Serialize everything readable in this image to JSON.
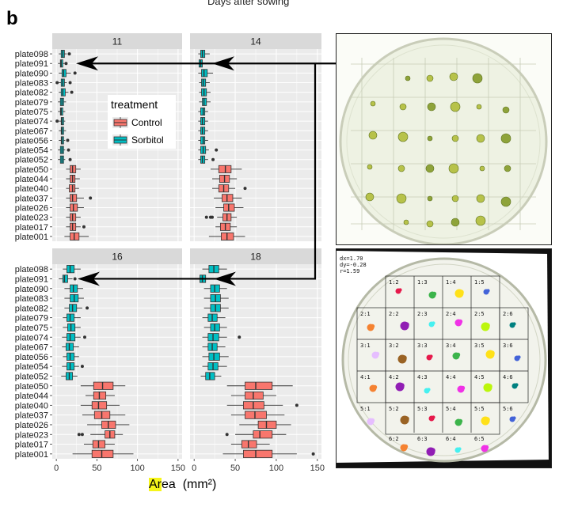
{
  "figure": {
    "top_caption": "Days after sowing",
    "panel_letter": "b",
    "x_axis_title_highlight": "Ar",
    "x_axis_title_rest": "ea",
    "x_axis_unit": "(mm²)"
  },
  "legend": {
    "title": "treatment",
    "items": [
      {
        "label": "Control",
        "color": "#f8766d"
      },
      {
        "label": "Sorbitol",
        "color": "#00bfc4"
      }
    ]
  },
  "colors": {
    "control": "#f8766d",
    "sorbitol": "#00bfc4",
    "strip_bg": "#d9d9d9",
    "panel_bg": "#ebebeb",
    "arrow": "#000000"
  },
  "chart_data": {
    "type": "box",
    "facets": [
      "11",
      "14",
      "16",
      "18"
    ],
    "categories": [
      "plate098",
      "plate091",
      "plate090",
      "plate083",
      "plate082",
      "plate079",
      "plate075",
      "plate074",
      "plate067",
      "plate056",
      "plate054",
      "plate052",
      "plate050",
      "plate044",
      "plate040",
      "plate037",
      "plate026",
      "plate023",
      "plate017",
      "plate001"
    ],
    "treatment_of_category": [
      "Sorbitol",
      "Sorbitol",
      "Sorbitol",
      "Sorbitol",
      "Sorbitol",
      "Sorbitol",
      "Sorbitol",
      "Sorbitol",
      "Sorbitol",
      "Sorbitol",
      "Sorbitol",
      "Sorbitol",
      "Control",
      "Control",
      "Control",
      "Control",
      "Control",
      "Control",
      "Control",
      "Control"
    ],
    "x_ticks": [
      0,
      50,
      100,
      150
    ],
    "xlim": [
      -5,
      155
    ],
    "xlabel": "Area (mm²)",
    "boxes": {
      "11": [
        {
          "min": 3,
          "q1": 6,
          "median": 8,
          "q3": 10,
          "max": 13,
          "outliers": [
            16
          ]
        },
        {
          "min": 2,
          "q1": 5,
          "median": 6,
          "q3": 8,
          "max": 10,
          "outliers": [
            12
          ]
        },
        {
          "min": 3,
          "q1": 7,
          "median": 9,
          "q3": 12,
          "max": 18,
          "outliers": [
            23
          ]
        },
        {
          "min": 2,
          "q1": 6,
          "median": 8,
          "q3": 10,
          "max": 13,
          "outliers": [
            1,
            17
          ]
        },
        {
          "min": 3,
          "q1": 6,
          "median": 8,
          "q3": 11,
          "max": 15,
          "outliers": [
            19
          ]
        },
        {
          "min": 2,
          "q1": 5,
          "median": 7,
          "q3": 9,
          "max": 12,
          "outliers": []
        },
        {
          "min": 2,
          "q1": 5,
          "median": 6,
          "q3": 8,
          "max": 11,
          "outliers": []
        },
        {
          "min": 3,
          "q1": 6,
          "median": 7,
          "q3": 9,
          "max": 11,
          "outliers": [
            1
          ]
        },
        {
          "min": 3,
          "q1": 6,
          "median": 7,
          "q3": 9,
          "max": 12,
          "outliers": []
        },
        {
          "min": 3,
          "q1": 6,
          "median": 7,
          "q3": 9,
          "max": 11,
          "outliers": [
            14
          ]
        },
        {
          "min": 2,
          "q1": 5,
          "median": 7,
          "q3": 9,
          "max": 11,
          "outliers": [
            15
          ]
        },
        {
          "min": 2,
          "q1": 5,
          "median": 7,
          "q3": 9,
          "max": 11,
          "outliers": [
            17
          ]
        },
        {
          "min": 12,
          "q1": 17,
          "median": 20,
          "q3": 24,
          "max": 30,
          "outliers": []
        },
        {
          "min": 12,
          "q1": 17,
          "median": 20,
          "q3": 23,
          "max": 29,
          "outliers": []
        },
        {
          "min": 12,
          "q1": 16,
          "median": 20,
          "q3": 23,
          "max": 28,
          "outliers": []
        },
        {
          "min": 12,
          "q1": 17,
          "median": 20,
          "q3": 25,
          "max": 34,
          "outliers": [
            42
          ]
        },
        {
          "min": 12,
          "q1": 17,
          "median": 21,
          "q3": 26,
          "max": 34,
          "outliers": []
        },
        {
          "min": 12,
          "q1": 17,
          "median": 20,
          "q3": 24,
          "max": 30,
          "outliers": []
        },
        {
          "min": 12,
          "q1": 17,
          "median": 20,
          "q3": 24,
          "max": 30,
          "outliers": [
            34
          ]
        },
        {
          "min": 10,
          "q1": 17,
          "median": 22,
          "q3": 28,
          "max": 40,
          "outliers": []
        }
      ],
      "14": [
        {
          "min": 5,
          "q1": 8,
          "median": 10,
          "q3": 13,
          "max": 19,
          "outliers": []
        },
        {
          "min": 3,
          "q1": 6,
          "median": 8,
          "q3": 10,
          "max": 14,
          "outliers": []
        },
        {
          "min": 5,
          "q1": 9,
          "median": 12,
          "q3": 16,
          "max": 23,
          "outliers": []
        },
        {
          "min": 6,
          "q1": 9,
          "median": 11,
          "q3": 14,
          "max": 19,
          "outliers": []
        },
        {
          "min": 6,
          "q1": 9,
          "median": 12,
          "q3": 15,
          "max": 20,
          "outliers": []
        },
        {
          "min": 6,
          "q1": 10,
          "median": 12,
          "q3": 15,
          "max": 20,
          "outliers": []
        },
        {
          "min": 5,
          "q1": 8,
          "median": 11,
          "q3": 13,
          "max": 17,
          "outliers": []
        },
        {
          "min": 5,
          "q1": 8,
          "median": 10,
          "q3": 13,
          "max": 17,
          "outliers": []
        },
        {
          "min": 5,
          "q1": 8,
          "median": 10,
          "q3": 13,
          "max": 17,
          "outliers": []
        },
        {
          "min": 5,
          "q1": 8,
          "median": 11,
          "q3": 13,
          "max": 17,
          "outliers": []
        },
        {
          "min": 5,
          "q1": 8,
          "median": 11,
          "q3": 14,
          "max": 18,
          "outliers": [
            27
          ]
        },
        {
          "min": 5,
          "q1": 8,
          "median": 10,
          "q3": 13,
          "max": 17,
          "outliers": [
            23
          ]
        },
        {
          "min": 20,
          "q1": 30,
          "median": 38,
          "q3": 45,
          "max": 58,
          "outliers": []
        },
        {
          "min": 22,
          "q1": 31,
          "median": 37,
          "q3": 43,
          "max": 52,
          "outliers": []
        },
        {
          "min": 22,
          "q1": 30,
          "median": 36,
          "q3": 42,
          "max": 50,
          "outliers": [
            62
          ]
        },
        {
          "min": 24,
          "q1": 34,
          "median": 40,
          "q3": 47,
          "max": 58,
          "outliers": []
        },
        {
          "min": 26,
          "q1": 36,
          "median": 42,
          "q3": 49,
          "max": 60,
          "outliers": []
        },
        {
          "min": 28,
          "q1": 35,
          "median": 40,
          "q3": 45,
          "max": 52,
          "outliers": [
            15,
            20,
            22
          ]
        },
        {
          "min": 26,
          "q1": 32,
          "median": 38,
          "q3": 44,
          "max": 52,
          "outliers": []
        },
        {
          "min": 18,
          "q1": 33,
          "median": 40,
          "q3": 48,
          "max": 62,
          "outliers": []
        }
      ],
      "16": [
        {
          "min": 8,
          "q1": 13,
          "median": 17,
          "q3": 22,
          "max": 30,
          "outliers": []
        },
        {
          "min": 3,
          "q1": 8,
          "median": 10,
          "q3": 14,
          "max": 20,
          "outliers": [
            23
          ]
        },
        {
          "min": 10,
          "q1": 17,
          "median": 21,
          "q3": 26,
          "max": 33,
          "outliers": []
        },
        {
          "min": 10,
          "q1": 17,
          "median": 22,
          "q3": 27,
          "max": 34,
          "outliers": []
        },
        {
          "min": 10,
          "q1": 16,
          "median": 20,
          "q3": 25,
          "max": 32,
          "outliers": [
            38
          ]
        },
        {
          "min": 8,
          "q1": 13,
          "median": 17,
          "q3": 22,
          "max": 30,
          "outliers": []
        },
        {
          "min": 8,
          "q1": 14,
          "median": 18,
          "q3": 23,
          "max": 30,
          "outliers": []
        },
        {
          "min": 7,
          "q1": 13,
          "median": 17,
          "q3": 23,
          "max": 30,
          "outliers": [
            35
          ]
        },
        {
          "min": 7,
          "q1": 12,
          "median": 16,
          "q3": 21,
          "max": 28,
          "outliers": []
        },
        {
          "min": 8,
          "q1": 13,
          "median": 17,
          "q3": 22,
          "max": 28,
          "outliers": []
        },
        {
          "min": 7,
          "q1": 13,
          "median": 17,
          "q3": 22,
          "max": 28,
          "outliers": [
            32
          ]
        },
        {
          "min": 6,
          "q1": 12,
          "median": 16,
          "q3": 20,
          "max": 26,
          "outliers": []
        },
        {
          "min": 30,
          "q1": 46,
          "median": 57,
          "q3": 70,
          "max": 85,
          "outliers": []
        },
        {
          "min": 36,
          "q1": 46,
          "median": 53,
          "q3": 61,
          "max": 72,
          "outliers": []
        },
        {
          "min": 30,
          "q1": 44,
          "median": 52,
          "q3": 62,
          "max": 78,
          "outliers": []
        },
        {
          "min": 32,
          "q1": 47,
          "median": 56,
          "q3": 66,
          "max": 85,
          "outliers": []
        },
        {
          "min": 38,
          "q1": 56,
          "median": 64,
          "q3": 73,
          "max": 90,
          "outliers": []
        },
        {
          "min": 42,
          "q1": 60,
          "median": 66,
          "q3": 72,
          "max": 82,
          "outliers": [
            28,
            32
          ]
        },
        {
          "min": 34,
          "q1": 45,
          "median": 52,
          "q3": 60,
          "max": 72,
          "outliers": []
        },
        {
          "min": 20,
          "q1": 44,
          "median": 56,
          "q3": 70,
          "max": 95,
          "outliers": []
        }
      ],
      "18": [
        {
          "min": 10,
          "q1": 18,
          "median": 24,
          "q3": 30,
          "max": 40,
          "outliers": []
        },
        {
          "min": 3,
          "q1": 7,
          "median": 10,
          "q3": 14,
          "max": 22,
          "outliers": []
        },
        {
          "min": 12,
          "q1": 20,
          "median": 25,
          "q3": 31,
          "max": 40,
          "outliers": []
        },
        {
          "min": 12,
          "q1": 20,
          "median": 26,
          "q3": 32,
          "max": 42,
          "outliers": []
        },
        {
          "min": 12,
          "q1": 20,
          "median": 26,
          "q3": 32,
          "max": 42,
          "outliers": []
        },
        {
          "min": 10,
          "q1": 17,
          "median": 22,
          "q3": 28,
          "max": 38,
          "outliers": []
        },
        {
          "min": 12,
          "q1": 20,
          "median": 25,
          "q3": 31,
          "max": 40,
          "outliers": []
        },
        {
          "min": 10,
          "q1": 17,
          "median": 23,
          "q3": 30,
          "max": 40,
          "outliers": [
            55
          ]
        },
        {
          "min": 10,
          "q1": 17,
          "median": 22,
          "q3": 28,
          "max": 38,
          "outliers": []
        },
        {
          "min": 10,
          "q1": 18,
          "median": 24,
          "q3": 31,
          "max": 42,
          "outliers": []
        },
        {
          "min": 10,
          "q1": 17,
          "median": 23,
          "q3": 29,
          "max": 40,
          "outliers": []
        },
        {
          "min": 8,
          "q1": 14,
          "median": 19,
          "q3": 25,
          "max": 33,
          "outliers": []
        },
        {
          "min": 40,
          "q1": 62,
          "median": 75,
          "q3": 95,
          "max": 120,
          "outliers": []
        },
        {
          "min": 45,
          "q1": 62,
          "median": 72,
          "q3": 84,
          "max": 100,
          "outliers": []
        },
        {
          "min": 40,
          "q1": 60,
          "median": 72,
          "q3": 85,
          "max": 108,
          "outliers": [
            125
          ]
        },
        {
          "min": 45,
          "q1": 62,
          "median": 74,
          "q3": 88,
          "max": 110,
          "outliers": []
        },
        {
          "min": 55,
          "q1": 78,
          "median": 88,
          "q3": 100,
          "max": 118,
          "outliers": []
        },
        {
          "min": 50,
          "q1": 72,
          "median": 80,
          "q3": 95,
          "max": 112,
          "outliers": [
            40
          ]
        },
        {
          "min": 45,
          "q1": 58,
          "median": 66,
          "q3": 76,
          "max": 92,
          "outliers": []
        },
        {
          "min": 35,
          "q1": 60,
          "median": 75,
          "q3": 95,
          "max": 125,
          "outliers": [
            145
          ]
        }
      ]
    },
    "grid": true,
    "legend_position": "inside-top-left-panel"
  },
  "photo_bottom": {
    "calibration_lines": [
      "dx=1.70",
      "dy=-0.28",
      "r=1.59"
    ],
    "cell_labels": [
      [
        "",
        "1:2",
        "1:3",
        "1:4",
        "1:5",
        ""
      ],
      [
        "2:1",
        "2:2",
        "2:3",
        "2:4",
        "2:5",
        "2:6"
      ],
      [
        "3:1",
        "3:2",
        "3:3",
        "3:4",
        "3:5",
        "3:6"
      ],
      [
        "4:1",
        "4:2",
        "4:3",
        "4:4",
        "4:5",
        "4:6"
      ],
      [
        "5:1",
        "5:2",
        "5:3",
        "5:4",
        "5:5",
        "5:6"
      ],
      [
        "",
        "6:2",
        "6:3",
        "6:4",
        "6:5",
        ""
      ]
    ]
  }
}
